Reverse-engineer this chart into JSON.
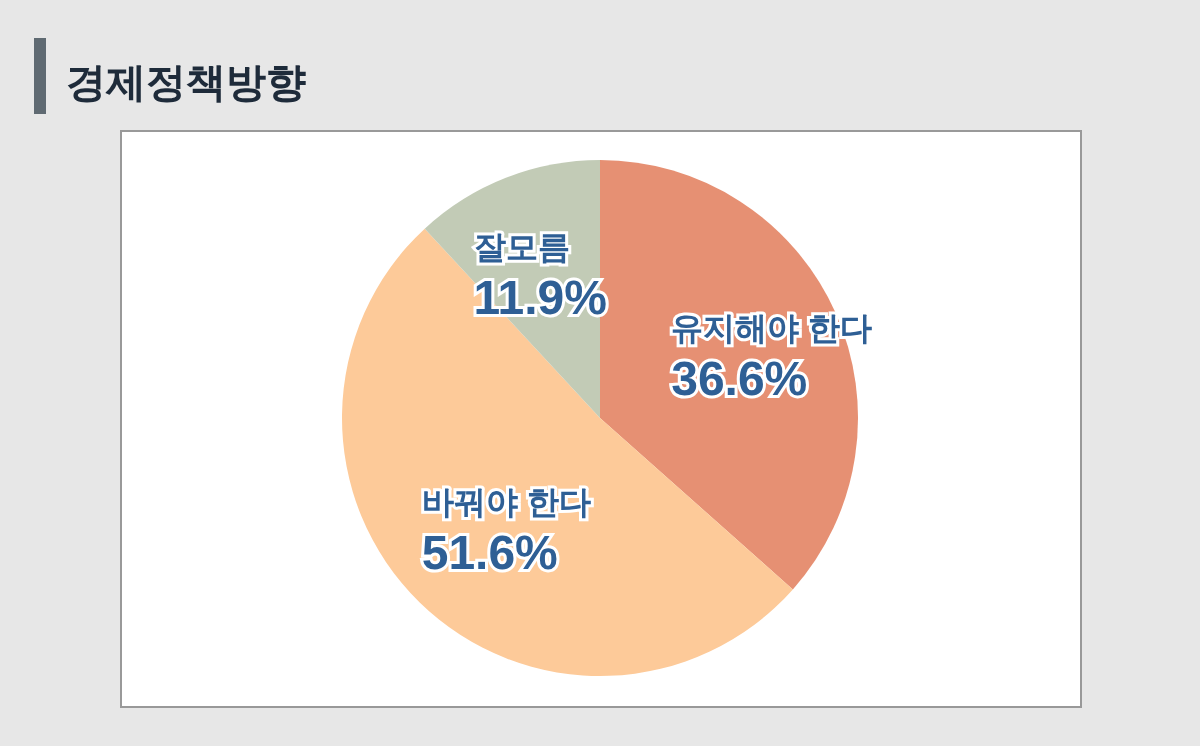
{
  "chart_data": {
    "type": "pie",
    "title": "경제정책방향",
    "categories": [
      "유지해야 한다",
      "바꿔야 한다",
      "잘모름"
    ],
    "values": [
      36.6,
      51.6,
      11.9
    ],
    "colors": [
      "#e69073",
      "#fdca99",
      "#c2cbb6"
    ],
    "value_labels": [
      "36.6%",
      "51.6%",
      "11.9%"
    ]
  }
}
